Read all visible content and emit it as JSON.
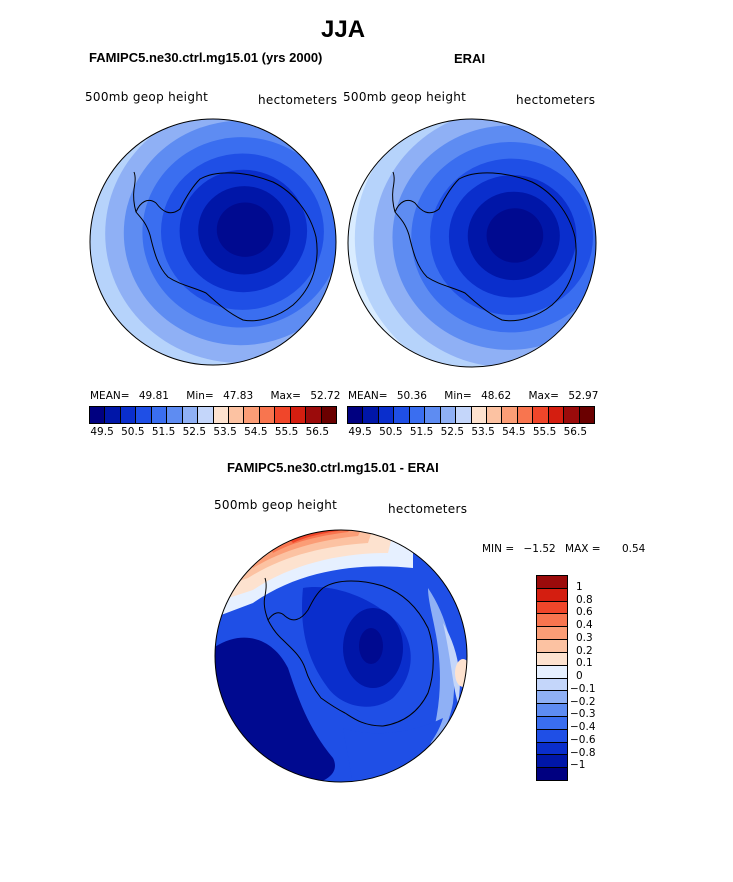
{
  "title": "JJA",
  "panels": [
    {
      "title": "FAMIPC5.ne30.ctrl.mg15.01 (yrs 2000)",
      "variable": "500mb geop height",
      "units": "hectometers",
      "stats": {
        "mean_label": "MEAN=",
        "mean": "49.81",
        "min_label": "Min=",
        "min": "47.83",
        "max_label": "Max=",
        "max": "52.72"
      }
    },
    {
      "title": "ERAI",
      "variable": "500mb geop height",
      "units": "hectometers",
      "stats": {
        "mean_label": "MEAN=",
        "mean": "50.36",
        "min_label": "Min=",
        "min": "48.62",
        "max_label": "Max=",
        "max": "52.97"
      }
    },
    {
      "title": "FAMIPC5.ne30.ctrl.mg15.01 - ERAI",
      "variable": "500mb geop height",
      "units": "hectometers",
      "stats": {
        "min_label": "MIN =",
        "min": "−1.52",
        "max_label": "MAX =",
        "max": "0.54"
      }
    }
  ],
  "colorbar_top": {
    "colors": [
      "#000080",
      "#0016a8",
      "#0a2ecc",
      "#1f4fe6",
      "#3a6ef0",
      "#5e8cf2",
      "#8fb0f5",
      "#c4d6fa",
      "#fde2cf",
      "#fcc2a2",
      "#fb9d76",
      "#f8754f",
      "#f0462a",
      "#d41e10",
      "#9b0b0b",
      "#6a0000"
    ],
    "labels": [
      "49.5",
      "50.5",
      "51.5",
      "52.5",
      "53.5",
      "54.5",
      "55.5",
      "56.5"
    ]
  },
  "colorbar_diff": {
    "colors": [
      "#000080",
      "#0016a8",
      "#0a2ecc",
      "#1f4fe6",
      "#3a6ef0",
      "#5e8cf2",
      "#8fb0f5",
      "#c4d6fa",
      "#e6f0ff",
      "#fde2cf",
      "#fcc2a2",
      "#fb9d76",
      "#f8754f",
      "#f0462a",
      "#d41e10",
      "#9b0b0b"
    ],
    "labels": [
      "1",
      "0.8",
      "0.6",
      "0.4",
      "0.3",
      "0.2",
      "0.1",
      "0",
      "−0.1",
      "−0.2",
      "−0.3",
      "−0.4",
      "−0.6",
      "−0.8",
      "−1"
    ]
  },
  "colors": {
    "ring_top": [
      "#d9ecff",
      "#b6d3fb",
      "#8fb0f5",
      "#5e8cf2",
      "#3a6ef0",
      "#1f4fe6",
      "#0a2ecc",
      "#0016a8",
      "#000a90"
    ],
    "diff_red": [
      "#f0462a",
      "#f8754f",
      "#fb9d76",
      "#fcc2a2",
      "#fde2cf"
    ],
    "diff_blue": [
      "#e6f0ff",
      "#c4d6fa",
      "#8fb0f5",
      "#3a6ef0",
      "#1f4fe6",
      "#0a2ecc",
      "#0016a8",
      "#000a90"
    ]
  }
}
